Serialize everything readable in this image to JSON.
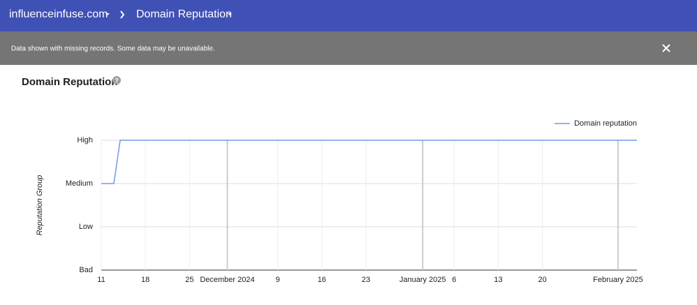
{
  "header": {
    "site": "influenceinfuse.com",
    "page": "Domain Reputation"
  },
  "banner": {
    "message": "Data shown with missing records. Some data may be unavailable."
  },
  "chart_data": {
    "type": "line",
    "title": "Domain Reputation",
    "y_label": "Reputation Group",
    "x": [
      "2024-11-11",
      "2024-11-13",
      "2024-11-14",
      "2025-02-04"
    ],
    "series": [
      {
        "name": "Domain reputation",
        "color": "#6f9be6",
        "values": [
          2,
          2,
          3,
          3
        ]
      }
    ],
    "xlim": [
      "2024-11-11",
      "2025-02-04"
    ],
    "xticks": [
      {
        "value": "2024-11-11",
        "label": "11"
      },
      {
        "value": "2024-11-18",
        "label": "18"
      },
      {
        "value": "2024-11-25",
        "label": "25"
      },
      {
        "value": "2024-12-01",
        "label": "December 2024"
      },
      {
        "value": "2024-12-09",
        "label": "9"
      },
      {
        "value": "2024-12-16",
        "label": "16"
      },
      {
        "value": "2024-12-23",
        "label": "23"
      },
      {
        "value": "2025-01-01",
        "label": "January 2025"
      },
      {
        "value": "2025-01-06",
        "label": "6"
      },
      {
        "value": "2025-01-13",
        "label": "13"
      },
      {
        "value": "2025-01-20",
        "label": "20"
      },
      {
        "value": "2025-02-01",
        "label": "February 2025"
      }
    ],
    "ylim": [
      0,
      3
    ],
    "yticks": [
      {
        "value": 0,
        "label": "Bad"
      },
      {
        "value": 1,
        "label": "Low"
      },
      {
        "value": 2,
        "label": "Medium"
      },
      {
        "value": 3,
        "label": "High"
      }
    ],
    "grid": true,
    "legend": "top-right"
  }
}
